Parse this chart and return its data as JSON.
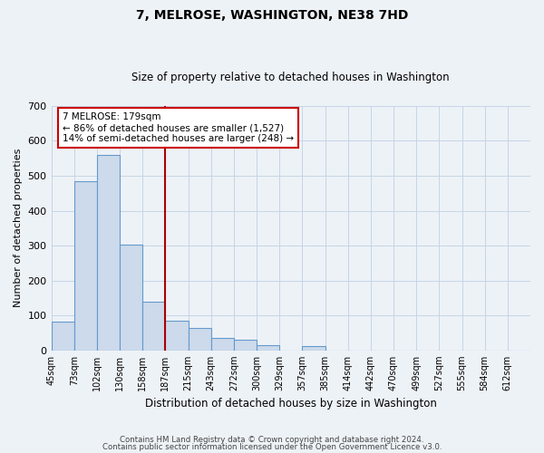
{
  "title": "7, MELROSE, WASHINGTON, NE38 7HD",
  "subtitle": "Size of property relative to detached houses in Washington",
  "xlabel": "Distribution of detached houses by size in Washington",
  "ylabel": "Number of detached properties",
  "footer_line1": "Contains HM Land Registry data © Crown copyright and database right 2024.",
  "footer_line2": "Contains public sector information licensed under the Open Government Licence v3.0.",
  "bin_labels": [
    "45sqm",
    "73sqm",
    "102sqm",
    "130sqm",
    "158sqm",
    "187sqm",
    "215sqm",
    "243sqm",
    "272sqm",
    "300sqm",
    "329sqm",
    "357sqm",
    "385sqm",
    "414sqm",
    "442sqm",
    "470sqm",
    "499sqm",
    "527sqm",
    "555sqm",
    "584sqm",
    "612sqm"
  ],
  "bar_values": [
    82,
    483,
    560,
    302,
    140,
    86,
    65,
    35,
    30,
    14,
    0,
    12,
    0,
    0,
    0,
    0,
    0,
    0,
    0,
    0,
    0
  ],
  "bar_color": "#ccdaeb",
  "bar_edge_color": "#6699cc",
  "ylim": [
    0,
    700
  ],
  "yticks": [
    0,
    100,
    200,
    300,
    400,
    500,
    600,
    700
  ],
  "grid_color": "#c5d5e5",
  "property_line_label": "7 MELROSE: 179sqm",
  "annotation_line1": "← 86% of detached houses are smaller (1,527)",
  "annotation_line2": "14% of semi-detached houses are larger (248) →",
  "annotation_box_color": "#ffffff",
  "annotation_box_edge": "#cc0000",
  "property_line_color": "#aa0000",
  "property_line_index": 5,
  "bg_color": "#edf2f7"
}
